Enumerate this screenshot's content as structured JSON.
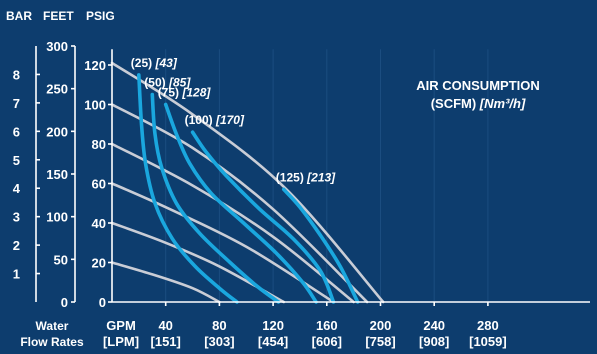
{
  "chart_data": {
    "type": "line",
    "title": "",
    "units": {
      "bar": "BAR",
      "feet": "FEET",
      "psig": "PSIG"
    },
    "xlabel_top": "GPM",
    "xlabel_bottom": "[LPM]",
    "ylabel_line1": "Water",
    "ylabel_line2": "Flow Rates",
    "x_ticks": [
      {
        "gpm": "40",
        "lpm": "[151]",
        "v": 40
      },
      {
        "gpm": "80",
        "lpm": "[303]",
        "v": 80
      },
      {
        "gpm": "120",
        "lpm": "[454]",
        "v": 120
      },
      {
        "gpm": "160",
        "lpm": "[606]",
        "v": 160
      },
      {
        "gpm": "200",
        "lpm": "[758]",
        "v": 200
      },
      {
        "gpm": "240",
        "lpm": "[908]",
        "v": 240
      },
      {
        "gpm": "280",
        "lpm": "[1059]",
        "v": 280
      }
    ],
    "x_zero_label": "0",
    "psig_ticks": [
      "0",
      "20",
      "40",
      "60",
      "80",
      "100",
      "120"
    ],
    "feet_ticks": [
      "0",
      "50",
      "100",
      "150",
      "200",
      "250",
      "300"
    ],
    "bar_ticks": [
      "1",
      "2",
      "3",
      "4",
      "5",
      "6",
      "7",
      "8"
    ],
    "xlim": [
      0,
      290
    ],
    "psig_lim": [
      0,
      128
    ],
    "legend": {
      "line1": "AIR CONSUMPTION",
      "line2_prefix": "(SCFM) ",
      "line2_italic": "[Nm³/h]"
    },
    "air_pressure_curves": [
      {
        "psig": 20,
        "points": [
          [
            0,
            20
          ],
          [
            30,
            14
          ],
          [
            60,
            7
          ],
          [
            80,
            0
          ]
        ]
      },
      {
        "psig": 40,
        "points": [
          [
            0,
            40
          ],
          [
            40,
            30
          ],
          [
            80,
            18
          ],
          [
            128,
            0
          ]
        ]
      },
      {
        "psig": 60,
        "points": [
          [
            0,
            60
          ],
          [
            40,
            48
          ],
          [
            100,
            28
          ],
          [
            165,
            0
          ]
        ]
      },
      {
        "psig": 80,
        "points": [
          [
            0,
            80
          ],
          [
            60,
            59
          ],
          [
            120,
            33
          ],
          [
            180,
            0
          ]
        ]
      },
      {
        "psig": 100,
        "points": [
          [
            0,
            100
          ],
          [
            60,
            78
          ],
          [
            120,
            47
          ],
          [
            190,
            0
          ]
        ]
      },
      {
        "psig": 120,
        "points": [
          [
            0,
            121
          ],
          [
            60,
            95
          ],
          [
            130,
            57
          ],
          [
            202,
            0
          ]
        ]
      }
    ],
    "series": [
      {
        "label": "(25)",
        "label_italic": "[43]",
        "points": [
          [
            20,
            115
          ],
          [
            22,
            90
          ],
          [
            25,
            70
          ],
          [
            32,
            50
          ],
          [
            45,
            32
          ],
          [
            62,
            18
          ],
          [
            80,
            7
          ],
          [
            93,
            0
          ]
        ]
      },
      {
        "label": "(50)",
        "label_italic": "[85]",
        "points": [
          [
            30,
            105
          ],
          [
            32,
            85
          ],
          [
            37,
            68
          ],
          [
            48,
            50
          ],
          [
            65,
            35
          ],
          [
            88,
            20
          ],
          [
            108,
            8
          ],
          [
            124,
            0
          ]
        ]
      },
      {
        "label": "(75)",
        "label_italic": "[128]",
        "points": [
          [
            40,
            100
          ],
          [
            48,
            85
          ],
          [
            58,
            70
          ],
          [
            74,
            55
          ],
          [
            98,
            40
          ],
          [
            122,
            25
          ],
          [
            142,
            10
          ],
          [
            152,
            0
          ]
        ]
      },
      {
        "label": "(100)",
        "label_italic": "[170]",
        "points": [
          [
            60,
            86
          ],
          [
            70,
            76
          ],
          [
            85,
            64
          ],
          [
            110,
            47
          ],
          [
            135,
            32
          ],
          [
            155,
            16
          ],
          [
            165,
            0
          ]
        ]
      },
      {
        "label": "(125)",
        "label_italic": "[213]",
        "points": [
          [
            128,
            57
          ],
          [
            140,
            48
          ],
          [
            155,
            34
          ],
          [
            170,
            18
          ],
          [
            183,
            0
          ]
        ]
      }
    ]
  }
}
